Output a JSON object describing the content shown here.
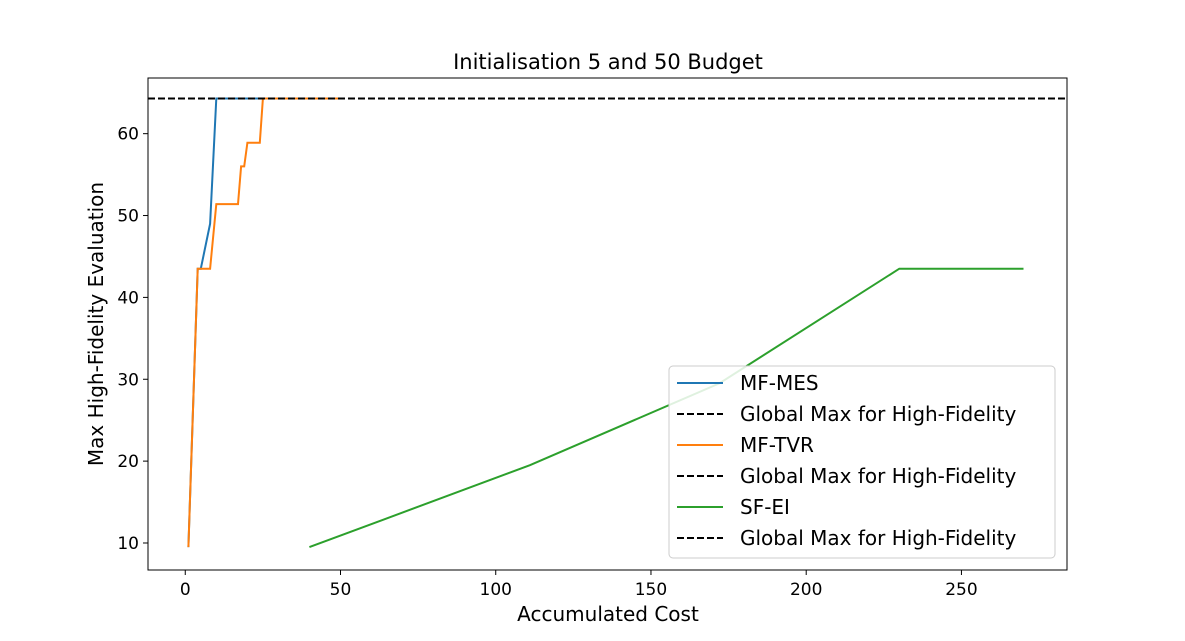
{
  "chart_data": {
    "type": "line",
    "title": "Initialisation 5 and 50 Budget",
    "xlabel": "Accumulated Cost",
    "ylabel": "Max High-Fidelity Evaluation",
    "xlim": [
      -12,
      284
    ],
    "ylim": [
      6.7,
      66.8
    ],
    "xticks": [
      0,
      50,
      100,
      150,
      200,
      250
    ],
    "yticks": [
      10,
      20,
      30,
      40,
      50,
      60
    ],
    "grid": false,
    "legend_position": "lower-right",
    "global_max": 64.3,
    "series": [
      {
        "name": "MF-MES",
        "color": "#1f77b4",
        "x": [
          1,
          4,
          5,
          8,
          10,
          20,
          30,
          40,
          50
        ],
        "y": [
          9.5,
          43.5,
          43.5,
          49.0,
          64.3,
          64.3,
          64.3,
          64.3,
          64.3
        ]
      },
      {
        "name": "MF-TVR",
        "color": "#ff7f0e",
        "x": [
          1,
          4,
          5,
          8,
          10,
          16,
          17,
          18,
          19,
          20,
          24,
          25,
          35,
          50
        ],
        "y": [
          9.5,
          43.5,
          43.5,
          43.5,
          51.4,
          51.4,
          51.4,
          56.0,
          56.0,
          58.9,
          58.9,
          64.3,
          64.3,
          64.3
        ]
      },
      {
        "name": "SF-EI",
        "color": "#2ca02c",
        "x": [
          40,
          111,
          172,
          230,
          270
        ],
        "y": [
          9.5,
          19.5,
          29.5,
          43.5,
          43.5
        ]
      }
    ],
    "legend": [
      {
        "label": "MF-MES",
        "color": "#1f77b4",
        "dashed": false
      },
      {
        "label": "Global Max for High-Fidelity",
        "color": "#000000",
        "dashed": true
      },
      {
        "label": "MF-TVR",
        "color": "#ff7f0e",
        "dashed": false
      },
      {
        "label": "Global Max for High-Fidelity",
        "color": "#000000",
        "dashed": true
      },
      {
        "label": "SF-EI",
        "color": "#2ca02c",
        "dashed": false
      },
      {
        "label": "Global Max for High-Fidelity",
        "color": "#000000",
        "dashed": true
      }
    ]
  }
}
